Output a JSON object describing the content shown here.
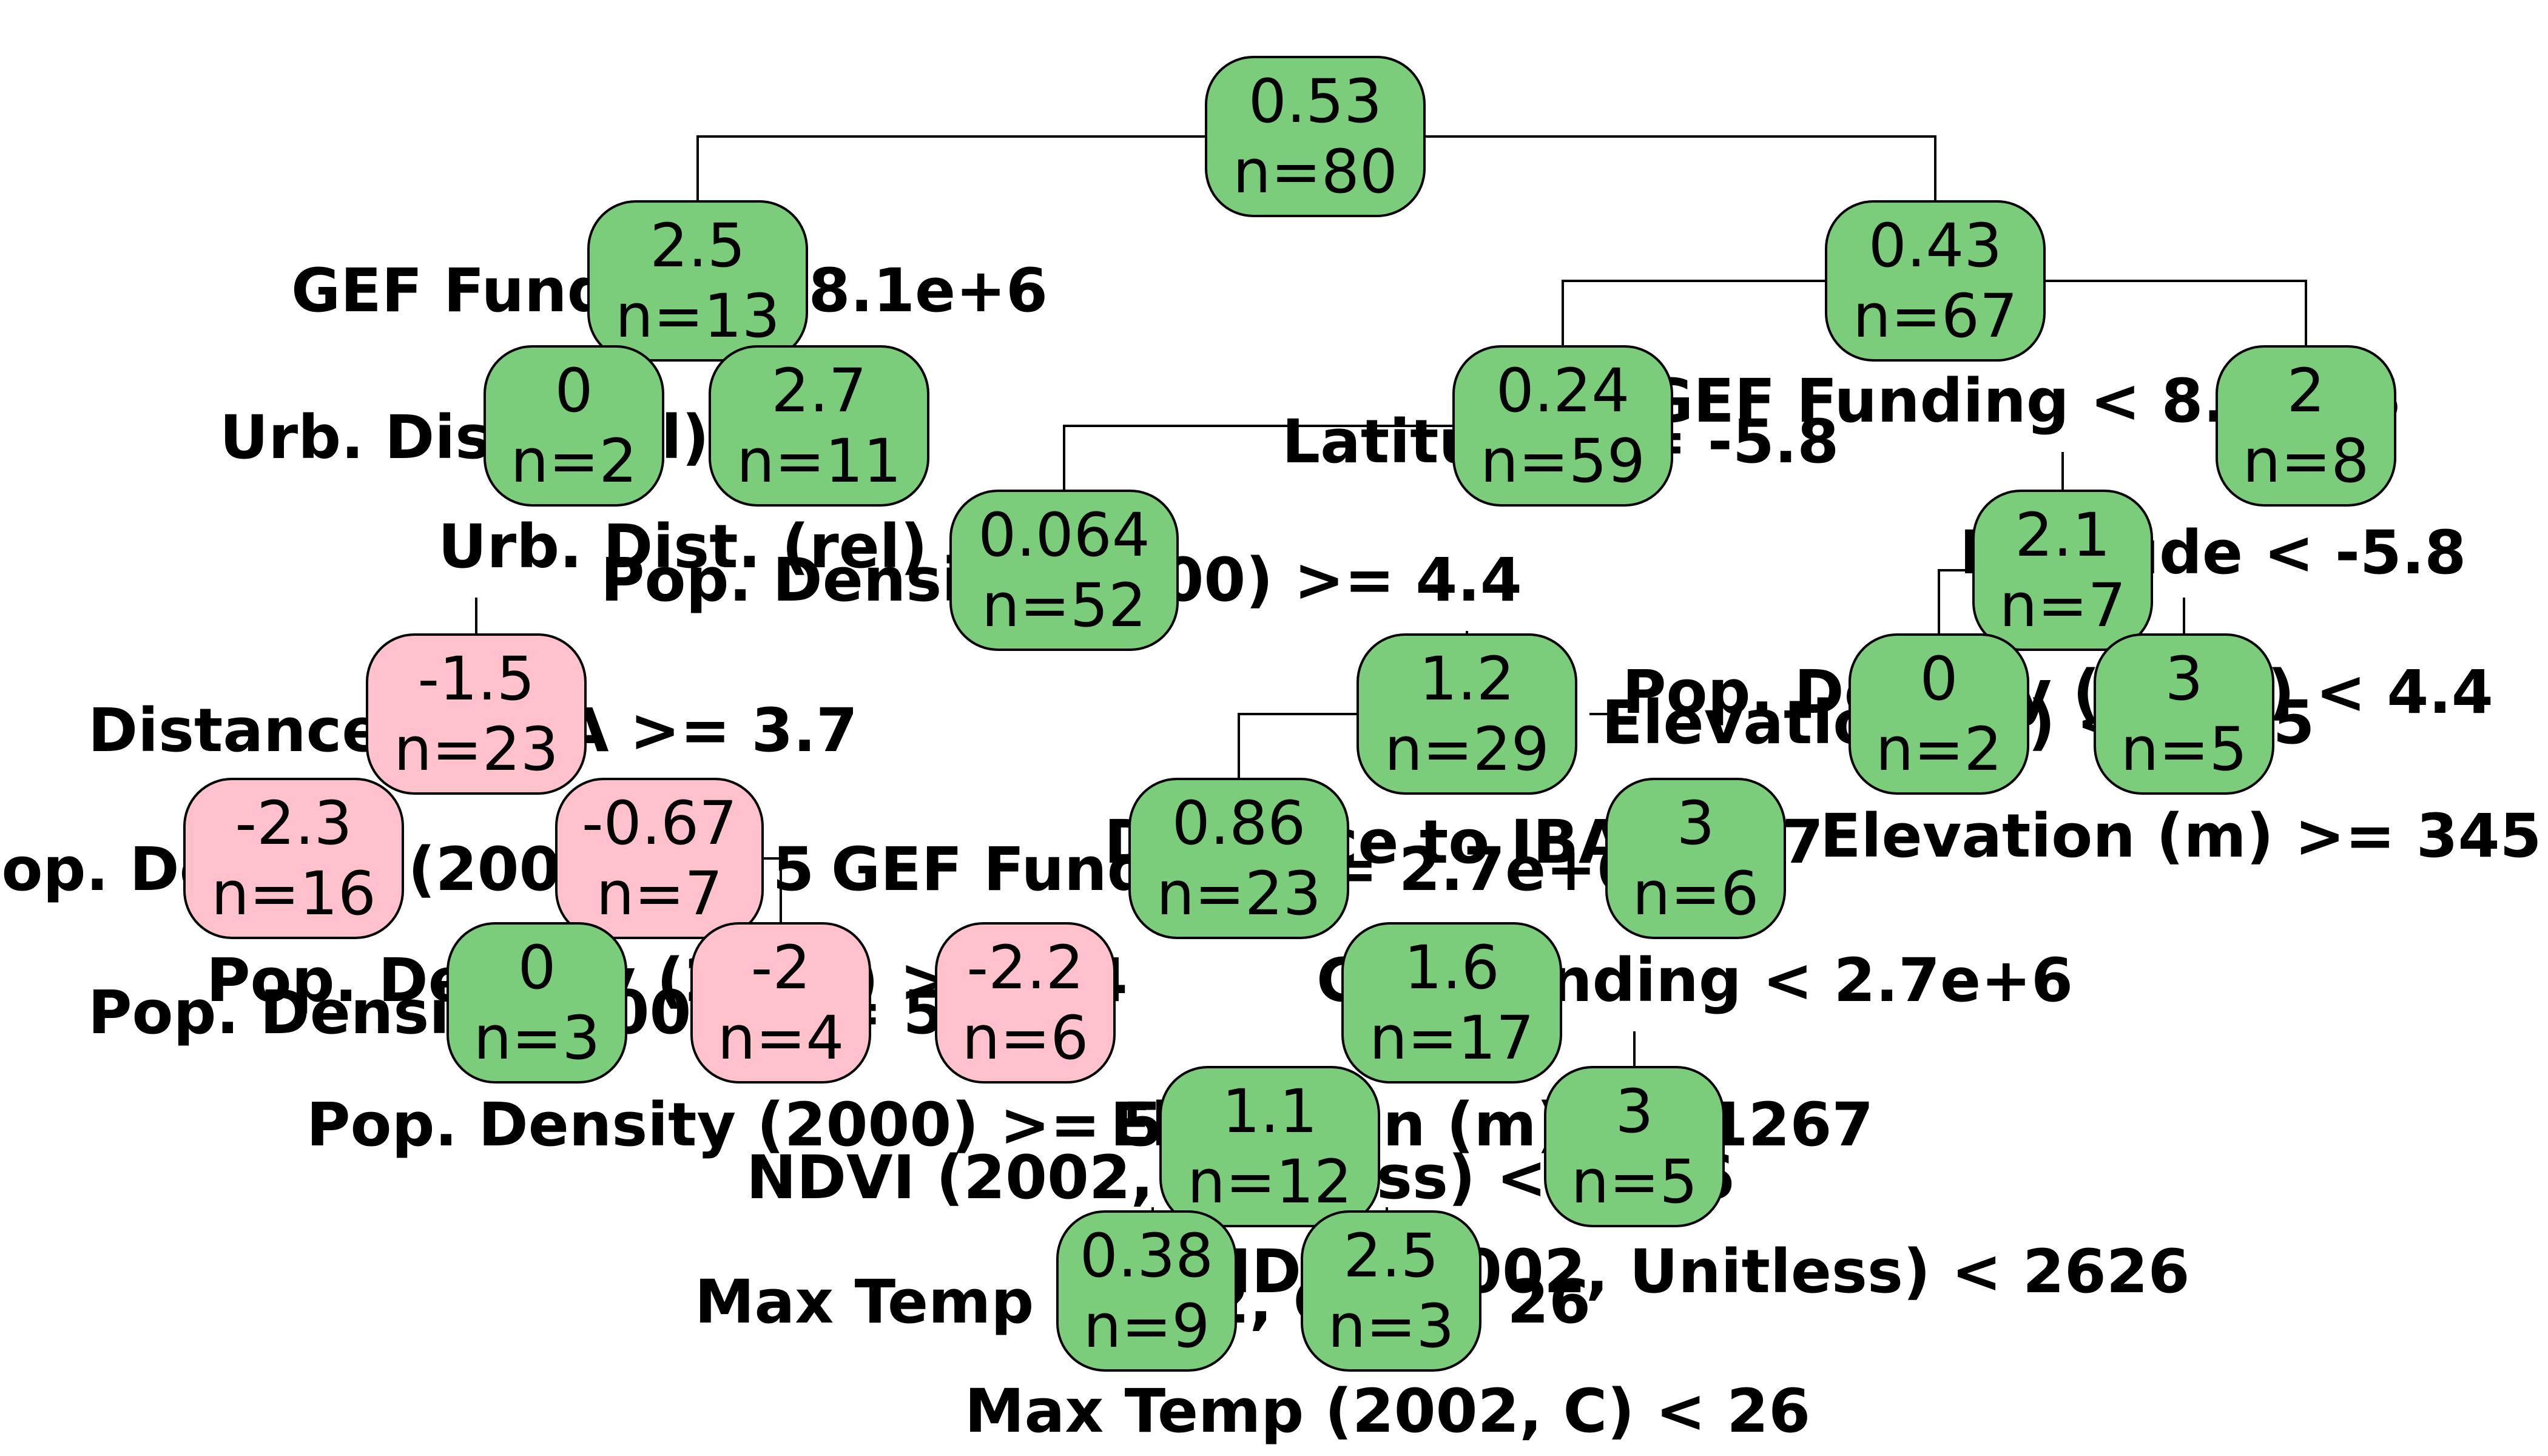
{
  "colors": {
    "positive_node": "#7bcd7b",
    "negative_node": "#ffc2cc"
  },
  "nodes": {
    "root": {
      "value": "0.53",
      "n": "n=80",
      "sign": "positive"
    },
    "n2": {
      "value": "2.5",
      "n": "n=13",
      "sign": "positive"
    },
    "n3": {
      "value": "0.43",
      "n": "n=67",
      "sign": "positive"
    },
    "n4": {
      "value": "0",
      "n": "n=2",
      "sign": "positive"
    },
    "n5": {
      "value": "2.7",
      "n": "n=11",
      "sign": "positive"
    },
    "n6": {
      "value": "0.24",
      "n": "n=59",
      "sign": "positive"
    },
    "n7": {
      "value": "2",
      "n": "n=8",
      "sign": "positive"
    },
    "n12": {
      "value": "0.064",
      "n": "n=52",
      "sign": "positive"
    },
    "n14": {
      "value": "2.1",
      "n": "n=7",
      "sign": "positive"
    },
    "n24": {
      "value": "-1.5",
      "n": "n=23",
      "sign": "negative"
    },
    "n25": {
      "value": "1.2",
      "n": "n=29",
      "sign": "positive"
    },
    "n28": {
      "value": "0",
      "n": "n=2",
      "sign": "positive"
    },
    "n29": {
      "value": "3",
      "n": "n=5",
      "sign": "positive"
    },
    "n48": {
      "value": "-2.3",
      "n": "n=16",
      "sign": "negative"
    },
    "n49": {
      "value": "-0.67",
      "n": "n=7",
      "sign": "negative"
    },
    "n50": {
      "value": "0.86",
      "n": "n=23",
      "sign": "positive"
    },
    "n51": {
      "value": "3",
      "n": "n=6",
      "sign": "positive"
    },
    "n98": {
      "value": "0",
      "n": "n=3",
      "sign": "positive"
    },
    "n99": {
      "value": "-2",
      "n": "n=4",
      "sign": "negative"
    },
    "n100": {
      "value": "-2.2",
      "n": "n=6",
      "sign": "negative"
    },
    "n101": {
      "value": "1.6",
      "n": "n=17",
      "sign": "positive"
    },
    "n202": {
      "value": "1.1",
      "n": "n=12",
      "sign": "positive"
    },
    "n203": {
      "value": "3",
      "n": "n=5",
      "sign": "positive"
    },
    "n404": {
      "value": "0.38",
      "n": "n=9",
      "sign": "positive"
    },
    "n405": {
      "value": "2.5",
      "n": "n=3",
      "sign": "positive"
    }
  },
  "splits": {
    "s_n2": "GEF Funding < 8.1e+6",
    "s_n3a": "GEF Funding < 8.1e+6",
    "s_urb1": "Urb. Dist. (rel)",
    "s_lat": "Latitude >= -5.8",
    "s_urb2": "Urb. Dist. (rel) >= 3",
    "s_pop1": "Pop. Density (2000) >= 4.4",
    "s_lat2": "Latitude < -5.8",
    "s_dist": "Distance to IBA >= 3.7",
    "s_pop2": "Pop. Density (2000) < 4.4",
    "s_elev1": "Elevation (m) < 1145",
    "s_pop3": "Pop. Density (2000) >= 5",
    "s_gef": "GEF Funding >= 2.7e+6",
    "s_dti": "Distance to IBA < 3.7",
    "s_elev2": "Elevation (m) >= 345",
    "s_pop4": "Pop. Density (2000) >= 4.4",
    "s_pop5": "Pop. Density (2000) >= 55",
    "s_gef2": "GEF Funding < 2.7e+6",
    "s_pop6": "Pop. Density (2000) >= 5",
    "s_elev3": "Elevation (m) >= 1267",
    "s_ndvi1": "NDVI (2002, Unitless) < 2626",
    "s_max1": "Max Temp (2002, C) >= 26",
    "s_ndvi2": "NDVI (2002, Unitless) < 2626",
    "s_max2": "Max Temp (2002, C) < 26"
  }
}
